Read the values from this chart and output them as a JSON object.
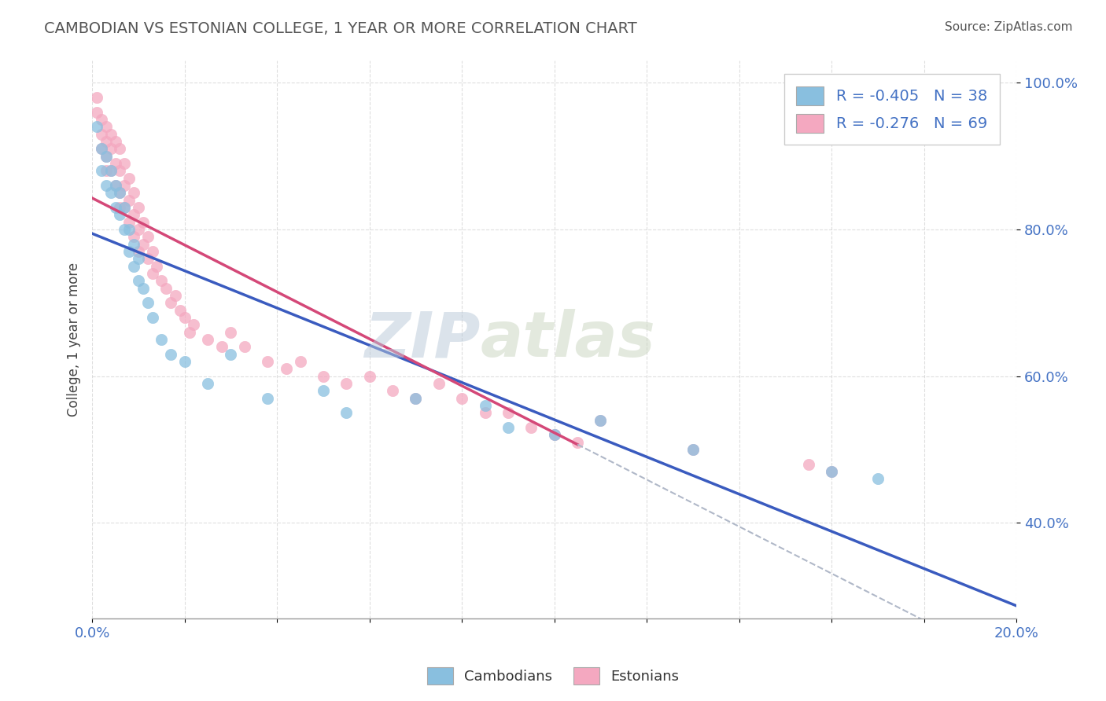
{
  "title": "CAMBODIAN VS ESTONIAN COLLEGE, 1 YEAR OR MORE CORRELATION CHART",
  "source": "Source: ZipAtlas.com",
  "ylabel": "College, 1 year or more",
  "xlim": [
    0.0,
    0.2
  ],
  "ylim": [
    0.27,
    1.03
  ],
  "y_ticks": [
    0.4,
    0.6,
    0.8,
    1.0
  ],
  "y_tick_labels": [
    "40.0%",
    "60.0%",
    "80.0%",
    "100.0%"
  ],
  "legend_blue_text": "R = -0.405   N = 38",
  "legend_pink_text": "R = -0.276   N = 69",
  "watermark_zip": "ZIP",
  "watermark_atlas": "atlas",
  "blue_color": "#89bfdf",
  "pink_color": "#f4a8c0",
  "blue_line_color": "#3a5bbf",
  "pink_line_color": "#d44878",
  "dashed_line_color": "#b0b8c8",
  "cambodian_x": [
    0.001,
    0.002,
    0.002,
    0.003,
    0.003,
    0.004,
    0.004,
    0.005,
    0.005,
    0.006,
    0.006,
    0.007,
    0.007,
    0.008,
    0.008,
    0.009,
    0.009,
    0.01,
    0.01,
    0.011,
    0.012,
    0.013,
    0.015,
    0.017,
    0.02,
    0.025,
    0.03,
    0.038,
    0.05,
    0.055,
    0.07,
    0.085,
    0.09,
    0.1,
    0.11,
    0.13,
    0.16,
    0.17
  ],
  "cambodian_y": [
    0.94,
    0.91,
    0.88,
    0.9,
    0.86,
    0.88,
    0.85,
    0.86,
    0.83,
    0.85,
    0.82,
    0.83,
    0.8,
    0.8,
    0.77,
    0.78,
    0.75,
    0.76,
    0.73,
    0.72,
    0.7,
    0.68,
    0.65,
    0.63,
    0.62,
    0.59,
    0.63,
    0.57,
    0.58,
    0.55,
    0.57,
    0.56,
    0.53,
    0.52,
    0.54,
    0.5,
    0.47,
    0.46
  ],
  "estonian_x": [
    0.001,
    0.001,
    0.002,
    0.002,
    0.002,
    0.003,
    0.003,
    0.003,
    0.003,
    0.004,
    0.004,
    0.004,
    0.005,
    0.005,
    0.005,
    0.006,
    0.006,
    0.006,
    0.006,
    0.007,
    0.007,
    0.007,
    0.008,
    0.008,
    0.008,
    0.009,
    0.009,
    0.009,
    0.01,
    0.01,
    0.01,
    0.011,
    0.011,
    0.012,
    0.012,
    0.013,
    0.013,
    0.014,
    0.015,
    0.016,
    0.017,
    0.018,
    0.019,
    0.02,
    0.021,
    0.022,
    0.025,
    0.028,
    0.03,
    0.033,
    0.038,
    0.042,
    0.045,
    0.05,
    0.055,
    0.06,
    0.065,
    0.07,
    0.075,
    0.08,
    0.085,
    0.09,
    0.095,
    0.1,
    0.105,
    0.11,
    0.13,
    0.155,
    0.16
  ],
  "estonian_y": [
    0.98,
    0.96,
    0.95,
    0.93,
    0.91,
    0.94,
    0.92,
    0.9,
    0.88,
    0.93,
    0.91,
    0.88,
    0.92,
    0.89,
    0.86,
    0.91,
    0.88,
    0.85,
    0.83,
    0.89,
    0.86,
    0.83,
    0.87,
    0.84,
    0.81,
    0.85,
    0.82,
    0.79,
    0.83,
    0.8,
    0.77,
    0.81,
    0.78,
    0.79,
    0.76,
    0.77,
    0.74,
    0.75,
    0.73,
    0.72,
    0.7,
    0.71,
    0.69,
    0.68,
    0.66,
    0.67,
    0.65,
    0.64,
    0.66,
    0.64,
    0.62,
    0.61,
    0.62,
    0.6,
    0.59,
    0.6,
    0.58,
    0.57,
    0.59,
    0.57,
    0.55,
    0.55,
    0.53,
    0.52,
    0.51,
    0.54,
    0.5,
    0.48,
    0.47
  ],
  "pink_line_x_end": 0.105
}
